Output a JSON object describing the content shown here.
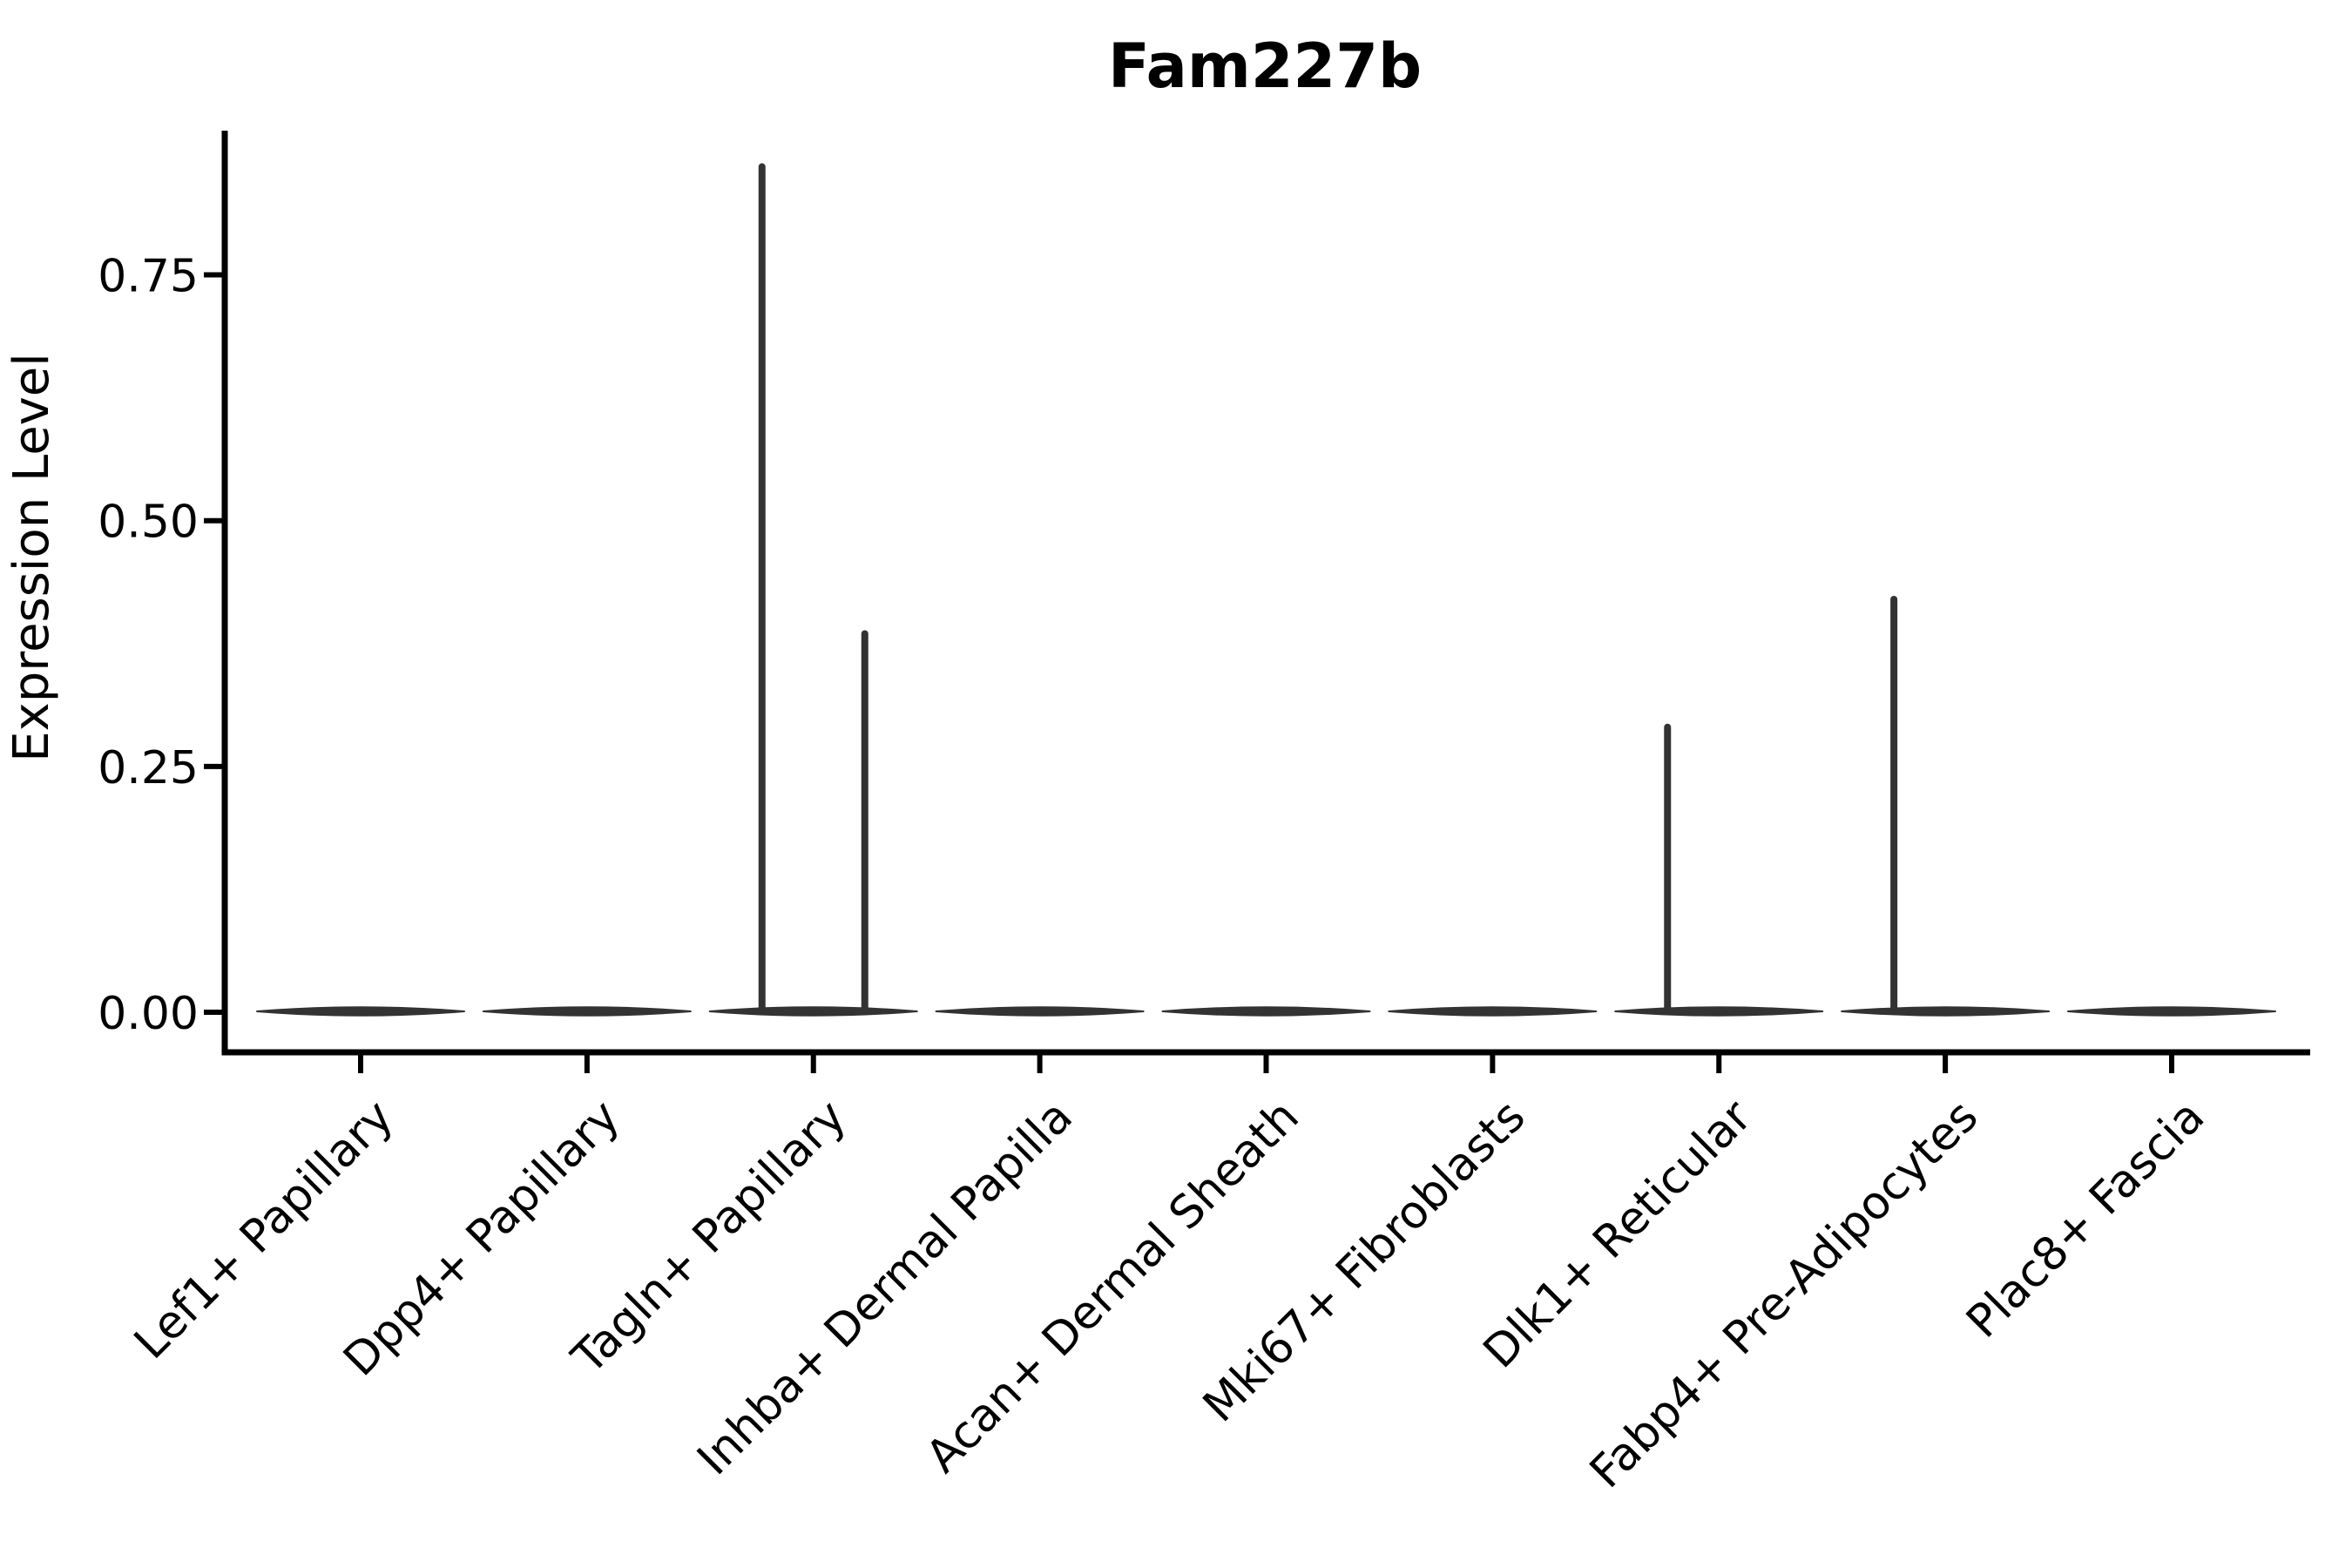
{
  "page": {
    "background": "#ffffff"
  },
  "chart_data": {
    "type": "violin",
    "title": "Fam227b",
    "ylabel": "Expression Level",
    "xlabel": "",
    "ylim": [
      -0.04,
      0.9
    ],
    "yticks": [
      0.0,
      0.25,
      0.5,
      0.75
    ],
    "ytick_labels": [
      "0.00",
      "0.25",
      "0.50",
      "0.75"
    ],
    "grid": false,
    "legend": "none",
    "categories": [
      "Lef1+ Papillary",
      "Dpp4+ Papillary",
      "Tagln+ Papillary",
      "Inhba+ Dermal Papilla",
      "Acan+ Dermal Sheath",
      "Mki67+ Fibroblasts",
      "Dlk1+ Reticular",
      "Fabp4+ Pre-Adipocytes",
      "Plac8+ Fascia"
    ],
    "violins": [
      {
        "category": "Lef1+ Papillary",
        "base_value": 0,
        "spikes": []
      },
      {
        "category": "Dpp4+ Papillary",
        "base_value": 0,
        "spikes": []
      },
      {
        "category": "Tagln+ Papillary",
        "base_value": 0,
        "spikes": [
          {
            "side": "left",
            "value": 0.86
          },
          {
            "side": "right",
            "value": 0.385
          }
        ]
      },
      {
        "category": "Inhba+ Dermal Papilla",
        "base_value": 0,
        "spikes": []
      },
      {
        "category": "Acan+ Dermal Sheath",
        "base_value": 0,
        "spikes": []
      },
      {
        "category": "Mki67+ Fibroblasts",
        "base_value": 0,
        "spikes": []
      },
      {
        "category": "Dlk1+ Reticular",
        "base_value": 0,
        "spikes": [
          {
            "side": "left",
            "value": 0.29
          }
        ]
      },
      {
        "category": "Fabp4+ Pre-Adipocytes",
        "base_value": 0,
        "spikes": [
          {
            "side": "left",
            "value": 0.42
          }
        ]
      },
      {
        "category": "Plac8+ Fascia",
        "base_value": 0,
        "spikes": []
      }
    ],
    "colors": {
      "violin": "#333333",
      "axis": "#000000",
      "text": "#000000",
      "background": "#ffffff"
    }
  }
}
